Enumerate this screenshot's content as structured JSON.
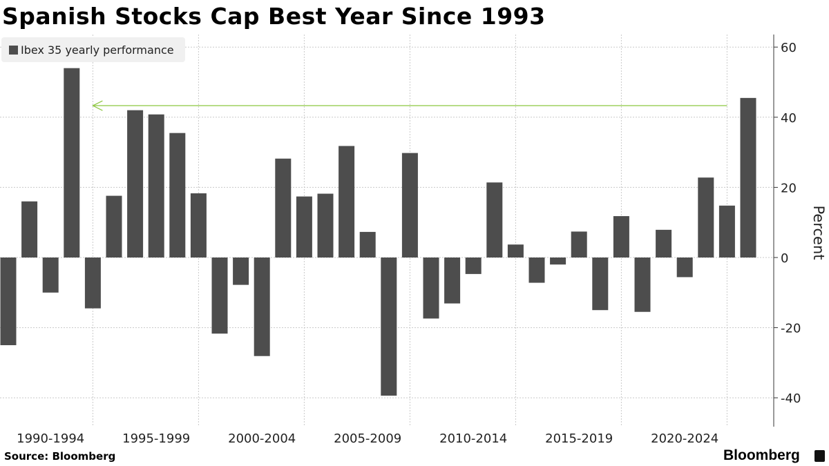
{
  "title": "Spanish Stocks Cap Best Year Since 1993",
  "source": "Source: Bloomberg",
  "brand": "Bloomberg",
  "chart_data": {
    "type": "bar",
    "title": "Spanish Stocks Cap Best Year Since 1993",
    "legend": [
      "Ibex 35 yearly performance"
    ],
    "legend_position": "top-left",
    "ylabel": "Percent",
    "xlabel": "",
    "ylim": [
      -48,
      63
    ],
    "yticks": [
      60,
      40,
      20,
      0,
      -20,
      -40
    ],
    "xtick_labels": [
      "1990-1994",
      "1995-1999",
      "2000-2004",
      "2005-2009",
      "2010-2014",
      "2015-2019",
      "2020-2024"
    ],
    "grid": true,
    "color": "#4d4d4d",
    "annotation": {
      "type": "arrow",
      "color": "#8cc63f",
      "from_year": 2024,
      "to_year": 1994,
      "value": 43.3
    },
    "categories": [
      1990,
      1991,
      1992,
      1993,
      1994,
      1995,
      1996,
      1997,
      1998,
      1999,
      2000,
      2001,
      2002,
      2003,
      2004,
      2005,
      2006,
      2007,
      2008,
      2009,
      2010,
      2011,
      2012,
      2013,
      2014,
      2015,
      2016,
      2017,
      2018,
      2019,
      2020,
      2021,
      2022,
      2023,
      2024,
      2025
    ],
    "values": [
      -25.0,
      16.0,
      -10.0,
      54.0,
      -14.5,
      17.6,
      42.0,
      40.8,
      35.5,
      18.3,
      -21.7,
      -7.8,
      -28.1,
      28.2,
      17.4,
      18.2,
      31.8,
      7.3,
      -39.4,
      29.8,
      -17.4,
      -13.1,
      -4.7,
      21.4,
      3.7,
      -7.2,
      -2.0,
      7.4,
      -15.0,
      11.8,
      -15.5,
      7.9,
      -5.6,
      22.8,
      14.8,
      45.5
    ]
  }
}
